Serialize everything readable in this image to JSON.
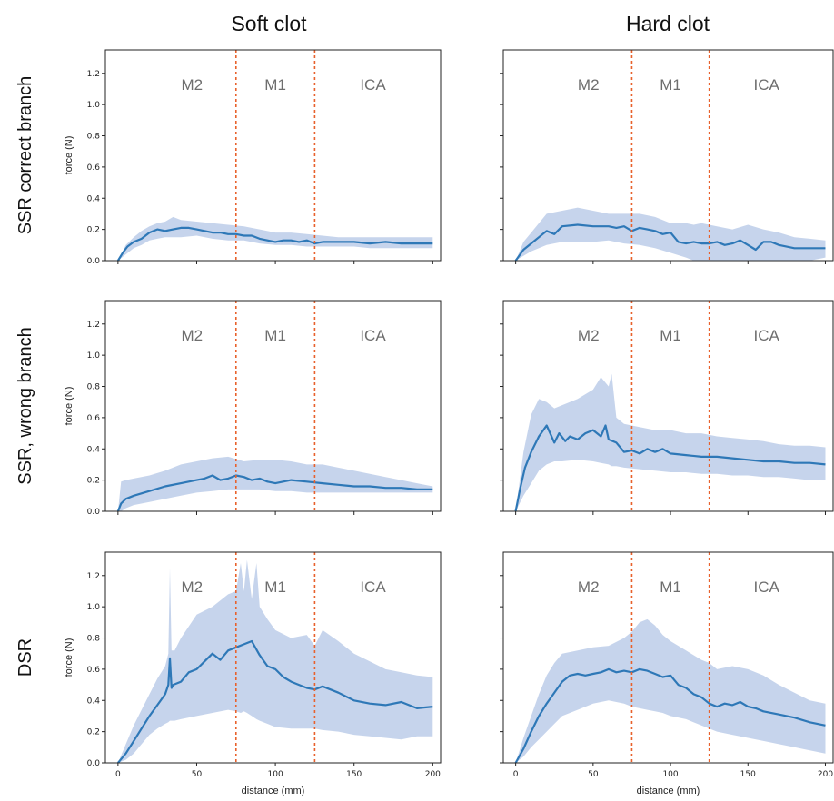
{
  "figure": {
    "column_titles": [
      "Soft clot",
      "Hard clot"
    ],
    "row_labels": [
      "SSR correct branch",
      "SSR, wrong branch",
      "DSR"
    ],
    "colors": {
      "line": "#2e78b7",
      "band": "#c6d4ec",
      "divider": "#e8612c",
      "region_text": "#6e6e6e"
    }
  },
  "chart_data": [
    {
      "type": "line",
      "panel": "SSR correct branch / Soft clot",
      "xlabel": "",
      "ylabel": "force (N)",
      "xlim": [
        -8,
        205
      ],
      "ylim": [
        0,
        1.35
      ],
      "xticks": [
        0,
        50,
        100,
        150,
        200
      ],
      "yticks": [
        0.0,
        0.2,
        0.4,
        0.6,
        0.8,
        1.0,
        1.2
      ],
      "show_xtick_labels": false,
      "show_ytick_labels": true,
      "regions": [
        {
          "label": "M2",
          "x": 47
        },
        {
          "label": "M1",
          "x": 100
        },
        {
          "label": "ICA",
          "x": 162
        }
      ],
      "dividers": [
        75,
        125
      ],
      "mean": {
        "x": [
          0,
          3,
          6,
          10,
          15,
          20,
          25,
          30,
          35,
          40,
          45,
          50,
          55,
          60,
          65,
          70,
          75,
          80,
          85,
          90,
          95,
          100,
          105,
          110,
          115,
          120,
          125,
          130,
          140,
          150,
          160,
          170,
          180,
          190,
          200
        ],
        "y": [
          0.0,
          0.05,
          0.09,
          0.12,
          0.14,
          0.18,
          0.2,
          0.19,
          0.2,
          0.21,
          0.21,
          0.2,
          0.19,
          0.18,
          0.18,
          0.17,
          0.17,
          0.16,
          0.16,
          0.14,
          0.13,
          0.12,
          0.13,
          0.13,
          0.12,
          0.13,
          0.11,
          0.12,
          0.12,
          0.12,
          0.11,
          0.12,
          0.11,
          0.11,
          0.11
        ]
      },
      "band": {
        "x": [
          0,
          5,
          10,
          15,
          20,
          25,
          30,
          35,
          40,
          50,
          60,
          70,
          80,
          90,
          100,
          110,
          120,
          130,
          140,
          150,
          160,
          170,
          180,
          190,
          200
        ],
        "lower": [
          0.0,
          0.04,
          0.08,
          0.1,
          0.13,
          0.14,
          0.15,
          0.15,
          0.15,
          0.16,
          0.14,
          0.13,
          0.13,
          0.11,
          0.1,
          0.1,
          0.09,
          0.09,
          0.09,
          0.09,
          0.08,
          0.08,
          0.08,
          0.08,
          0.08
        ],
        "upper": [
          0.0,
          0.1,
          0.15,
          0.19,
          0.22,
          0.24,
          0.25,
          0.28,
          0.26,
          0.25,
          0.24,
          0.23,
          0.22,
          0.2,
          0.18,
          0.18,
          0.17,
          0.16,
          0.15,
          0.15,
          0.15,
          0.15,
          0.15,
          0.15,
          0.15
        ]
      }
    },
    {
      "type": "line",
      "panel": "SSR correct branch / Hard clot",
      "xlabel": "",
      "ylabel": "",
      "xlim": [
        -8,
        205
      ],
      "ylim": [
        0,
        1.35
      ],
      "xticks": [
        0,
        50,
        100,
        150,
        200
      ],
      "yticks": [
        0.0,
        0.2,
        0.4,
        0.6,
        0.8,
        1.0,
        1.2
      ],
      "show_xtick_labels": false,
      "show_ytick_labels": false,
      "regions": [
        {
          "label": "M2",
          "x": 47
        },
        {
          "label": "M1",
          "x": 100
        },
        {
          "label": "ICA",
          "x": 162
        }
      ],
      "dividers": [
        75,
        125
      ],
      "mean": {
        "x": [
          0,
          5,
          10,
          15,
          20,
          25,
          30,
          40,
          50,
          60,
          65,
          70,
          75,
          80,
          85,
          90,
          95,
          100,
          105,
          110,
          115,
          120,
          125,
          130,
          135,
          140,
          145,
          150,
          155,
          160,
          165,
          170,
          180,
          190,
          200
        ],
        "y": [
          0.0,
          0.07,
          0.11,
          0.15,
          0.19,
          0.17,
          0.22,
          0.23,
          0.22,
          0.22,
          0.21,
          0.22,
          0.19,
          0.21,
          0.2,
          0.19,
          0.17,
          0.18,
          0.12,
          0.11,
          0.12,
          0.11,
          0.11,
          0.12,
          0.1,
          0.11,
          0.13,
          0.1,
          0.07,
          0.12,
          0.12,
          0.1,
          0.08,
          0.08,
          0.08
        ]
      },
      "band": {
        "x": [
          0,
          5,
          10,
          15,
          20,
          30,
          40,
          50,
          60,
          70,
          80,
          90,
          100,
          110,
          115,
          120,
          130,
          140,
          150,
          160,
          170,
          180,
          190,
          200
        ],
        "lower": [
          0.0,
          0.03,
          0.06,
          0.08,
          0.1,
          0.12,
          0.12,
          0.12,
          0.13,
          0.11,
          0.1,
          0.08,
          0.05,
          0.02,
          0.0,
          0.0,
          0.0,
          0.0,
          0.0,
          0.0,
          0.0,
          0.0,
          0.0,
          0.02
        ],
        "upper": [
          0.0,
          0.12,
          0.18,
          0.24,
          0.3,
          0.32,
          0.34,
          0.32,
          0.3,
          0.3,
          0.3,
          0.28,
          0.24,
          0.24,
          0.23,
          0.24,
          0.22,
          0.2,
          0.23,
          0.2,
          0.18,
          0.15,
          0.14,
          0.13
        ]
      }
    },
    {
      "type": "line",
      "panel": "SSR, wrong branch / Soft clot",
      "xlabel": "",
      "ylabel": "force (N)",
      "xlim": [
        -8,
        205
      ],
      "ylim": [
        0,
        1.35
      ],
      "xticks": [
        0,
        50,
        100,
        150,
        200
      ],
      "yticks": [
        0.0,
        0.2,
        0.4,
        0.6,
        0.8,
        1.0,
        1.2
      ],
      "show_xtick_labels": false,
      "show_ytick_labels": true,
      "regions": [
        {
          "label": "M2",
          "x": 47
        },
        {
          "label": "M1",
          "x": 100
        },
        {
          "label": "ICA",
          "x": 162
        }
      ],
      "dividers": [
        75,
        125
      ],
      "mean": {
        "x": [
          0,
          2,
          5,
          10,
          20,
          30,
          40,
          50,
          55,
          60,
          65,
          70,
          75,
          80,
          85,
          90,
          95,
          100,
          105,
          110,
          120,
          130,
          140,
          150,
          160,
          170,
          180,
          190,
          200
        ],
        "y": [
          0.0,
          0.05,
          0.08,
          0.1,
          0.13,
          0.16,
          0.18,
          0.2,
          0.21,
          0.23,
          0.2,
          0.21,
          0.23,
          0.22,
          0.2,
          0.21,
          0.19,
          0.18,
          0.19,
          0.2,
          0.19,
          0.18,
          0.17,
          0.16,
          0.16,
          0.15,
          0.15,
          0.14,
          0.14
        ]
      },
      "band": {
        "x": [
          0,
          2,
          5,
          10,
          20,
          30,
          40,
          50,
          60,
          70,
          80,
          90,
          100,
          110,
          120,
          130,
          140,
          150,
          160,
          170,
          180,
          190,
          200
        ],
        "lower": [
          0.0,
          0.0,
          0.02,
          0.04,
          0.06,
          0.08,
          0.1,
          0.12,
          0.13,
          0.14,
          0.14,
          0.14,
          0.13,
          0.13,
          0.12,
          0.12,
          0.12,
          0.12,
          0.12,
          0.12,
          0.12,
          0.12,
          0.12
        ],
        "upper": [
          0.0,
          0.19,
          0.2,
          0.21,
          0.23,
          0.26,
          0.3,
          0.32,
          0.34,
          0.35,
          0.32,
          0.33,
          0.33,
          0.32,
          0.3,
          0.3,
          0.28,
          0.26,
          0.24,
          0.22,
          0.2,
          0.18,
          0.16
        ]
      }
    },
    {
      "type": "line",
      "panel": "SSR, wrong branch / Hard clot",
      "xlabel": "",
      "ylabel": "",
      "xlim": [
        -8,
        205
      ],
      "ylim": [
        0,
        1.35
      ],
      "xticks": [
        0,
        50,
        100,
        150,
        200
      ],
      "yticks": [
        0.0,
        0.2,
        0.4,
        0.6,
        0.8,
        1.0,
        1.2
      ],
      "show_xtick_labels": false,
      "show_ytick_labels": false,
      "regions": [
        {
          "label": "M2",
          "x": 47
        },
        {
          "label": "M1",
          "x": 100
        },
        {
          "label": "ICA",
          "x": 162
        }
      ],
      "dividers": [
        75,
        125
      ],
      "mean": {
        "x": [
          0,
          3,
          6,
          10,
          15,
          20,
          25,
          28,
          32,
          35,
          40,
          45,
          50,
          55,
          58,
          60,
          65,
          70,
          75,
          80,
          85,
          90,
          95,
          100,
          110,
          120,
          130,
          140,
          150,
          160,
          170,
          180,
          190,
          200
        ],
        "y": [
          0.0,
          0.15,
          0.28,
          0.38,
          0.48,
          0.55,
          0.44,
          0.5,
          0.45,
          0.48,
          0.46,
          0.5,
          0.52,
          0.48,
          0.55,
          0.46,
          0.44,
          0.38,
          0.39,
          0.37,
          0.4,
          0.38,
          0.4,
          0.37,
          0.36,
          0.35,
          0.35,
          0.34,
          0.33,
          0.32,
          0.32,
          0.31,
          0.31,
          0.3
        ]
      },
      "band": {
        "x": [
          0,
          5,
          10,
          15,
          20,
          25,
          30,
          40,
          50,
          55,
          60,
          62,
          65,
          70,
          80,
          90,
          100,
          110,
          120,
          130,
          140,
          150,
          160,
          170,
          180,
          190,
          200
        ],
        "lower": [
          0.0,
          0.1,
          0.18,
          0.26,
          0.3,
          0.32,
          0.32,
          0.33,
          0.32,
          0.31,
          0.3,
          0.29,
          0.29,
          0.28,
          0.27,
          0.26,
          0.25,
          0.25,
          0.24,
          0.24,
          0.23,
          0.23,
          0.22,
          0.22,
          0.21,
          0.2,
          0.2
        ],
        "upper": [
          0.0,
          0.38,
          0.62,
          0.72,
          0.7,
          0.66,
          0.68,
          0.72,
          0.78,
          0.86,
          0.8,
          0.88,
          0.6,
          0.56,
          0.54,
          0.52,
          0.52,
          0.5,
          0.5,
          0.48,
          0.47,
          0.46,
          0.45,
          0.43,
          0.42,
          0.42,
          0.41
        ]
      }
    },
    {
      "type": "line",
      "panel": "DSR / Soft clot",
      "xlabel": "distance (mm)",
      "ylabel": "force (N)",
      "xlim": [
        -8,
        205
      ],
      "ylim": [
        0,
        1.35
      ],
      "xticks": [
        0,
        50,
        100,
        150,
        200
      ],
      "yticks": [
        0.0,
        0.2,
        0.4,
        0.6,
        0.8,
        1.0,
        1.2
      ],
      "show_xtick_labels": true,
      "show_ytick_labels": true,
      "regions": [
        {
          "label": "M2",
          "x": 47
        },
        {
          "label": "M1",
          "x": 100
        },
        {
          "label": "ICA",
          "x": 162
        }
      ],
      "dividers": [
        75,
        125
      ],
      "mean": {
        "x": [
          0,
          5,
          10,
          15,
          20,
          25,
          30,
          32,
          33,
          34,
          35,
          40,
          45,
          50,
          55,
          60,
          65,
          70,
          75,
          80,
          85,
          90,
          95,
          100,
          105,
          110,
          115,
          120,
          125,
          130,
          140,
          150,
          160,
          170,
          180,
          190,
          200
        ],
        "y": [
          0.0,
          0.06,
          0.14,
          0.22,
          0.3,
          0.37,
          0.44,
          0.5,
          0.67,
          0.48,
          0.5,
          0.52,
          0.58,
          0.6,
          0.65,
          0.7,
          0.66,
          0.72,
          0.74,
          0.76,
          0.78,
          0.69,
          0.62,
          0.6,
          0.55,
          0.52,
          0.5,
          0.48,
          0.47,
          0.49,
          0.45,
          0.4,
          0.38,
          0.37,
          0.39,
          0.35,
          0.36
        ]
      },
      "band": {
        "x": [
          0,
          5,
          10,
          15,
          20,
          25,
          30,
          32,
          33,
          34,
          36,
          40,
          50,
          60,
          70,
          75,
          78,
          80,
          82,
          85,
          88,
          90,
          95,
          100,
          110,
          120,
          125,
          130,
          140,
          150,
          160,
          170,
          180,
          190,
          200
        ],
        "lower": [
          0.0,
          0.02,
          0.06,
          0.12,
          0.18,
          0.22,
          0.25,
          0.26,
          0.27,
          0.27,
          0.27,
          0.28,
          0.3,
          0.32,
          0.34,
          0.33,
          0.32,
          0.33,
          0.32,
          0.3,
          0.28,
          0.27,
          0.25,
          0.23,
          0.22,
          0.22,
          0.22,
          0.21,
          0.2,
          0.18,
          0.17,
          0.16,
          0.15,
          0.17,
          0.17
        ],
        "upper": [
          0.0,
          0.12,
          0.24,
          0.34,
          0.44,
          0.54,
          0.62,
          0.7,
          1.25,
          0.72,
          0.72,
          0.8,
          0.95,
          1.0,
          1.08,
          1.1,
          1.28,
          1.1,
          1.3,
          1.05,
          1.28,
          1.0,
          0.92,
          0.85,
          0.8,
          0.82,
          0.75,
          0.85,
          0.78,
          0.7,
          0.65,
          0.6,
          0.58,
          0.56,
          0.55
        ]
      }
    },
    {
      "type": "line",
      "panel": "DSR / Hard clot",
      "xlabel": "distance (mm)",
      "ylabel": "",
      "xlim": [
        -8,
        205
      ],
      "ylim": [
        0,
        1.35
      ],
      "xticks": [
        0,
        50,
        100,
        150,
        200
      ],
      "yticks": [
        0.0,
        0.2,
        0.4,
        0.6,
        0.8,
        1.0,
        1.2
      ],
      "show_xtick_labels": true,
      "show_ytick_labels": false,
      "regions": [
        {
          "label": "M2",
          "x": 47
        },
        {
          "label": "M1",
          "x": 100
        },
        {
          "label": "ICA",
          "x": 162
        }
      ],
      "dividers": [
        75,
        125
      ],
      "mean": {
        "x": [
          0,
          5,
          10,
          15,
          20,
          25,
          30,
          35,
          40,
          45,
          50,
          55,
          60,
          65,
          70,
          75,
          80,
          85,
          90,
          95,
          100,
          105,
          110,
          115,
          120,
          125,
          130,
          135,
          140,
          145,
          150,
          155,
          160,
          170,
          180,
          190,
          200
        ],
        "y": [
          0.0,
          0.09,
          0.2,
          0.3,
          0.38,
          0.45,
          0.52,
          0.56,
          0.57,
          0.56,
          0.57,
          0.58,
          0.6,
          0.58,
          0.59,
          0.58,
          0.6,
          0.59,
          0.57,
          0.55,
          0.56,
          0.5,
          0.48,
          0.44,
          0.42,
          0.38,
          0.36,
          0.38,
          0.37,
          0.39,
          0.36,
          0.35,
          0.33,
          0.31,
          0.29,
          0.26,
          0.24
        ]
      },
      "band": {
        "x": [
          0,
          5,
          10,
          15,
          20,
          25,
          30,
          40,
          50,
          60,
          70,
          75,
          80,
          85,
          90,
          95,
          100,
          110,
          120,
          125,
          130,
          140,
          150,
          160,
          170,
          180,
          190,
          200
        ],
        "lower": [
          0.0,
          0.04,
          0.1,
          0.15,
          0.2,
          0.25,
          0.3,
          0.34,
          0.38,
          0.4,
          0.38,
          0.36,
          0.35,
          0.34,
          0.33,
          0.32,
          0.3,
          0.28,
          0.24,
          0.22,
          0.2,
          0.18,
          0.16,
          0.14,
          0.12,
          0.1,
          0.08,
          0.06
        ],
        "upper": [
          0.0,
          0.16,
          0.3,
          0.44,
          0.56,
          0.64,
          0.7,
          0.72,
          0.74,
          0.75,
          0.8,
          0.84,
          0.9,
          0.92,
          0.88,
          0.82,
          0.78,
          0.72,
          0.66,
          0.64,
          0.6,
          0.62,
          0.6,
          0.56,
          0.5,
          0.45,
          0.4,
          0.38
        ]
      }
    }
  ]
}
